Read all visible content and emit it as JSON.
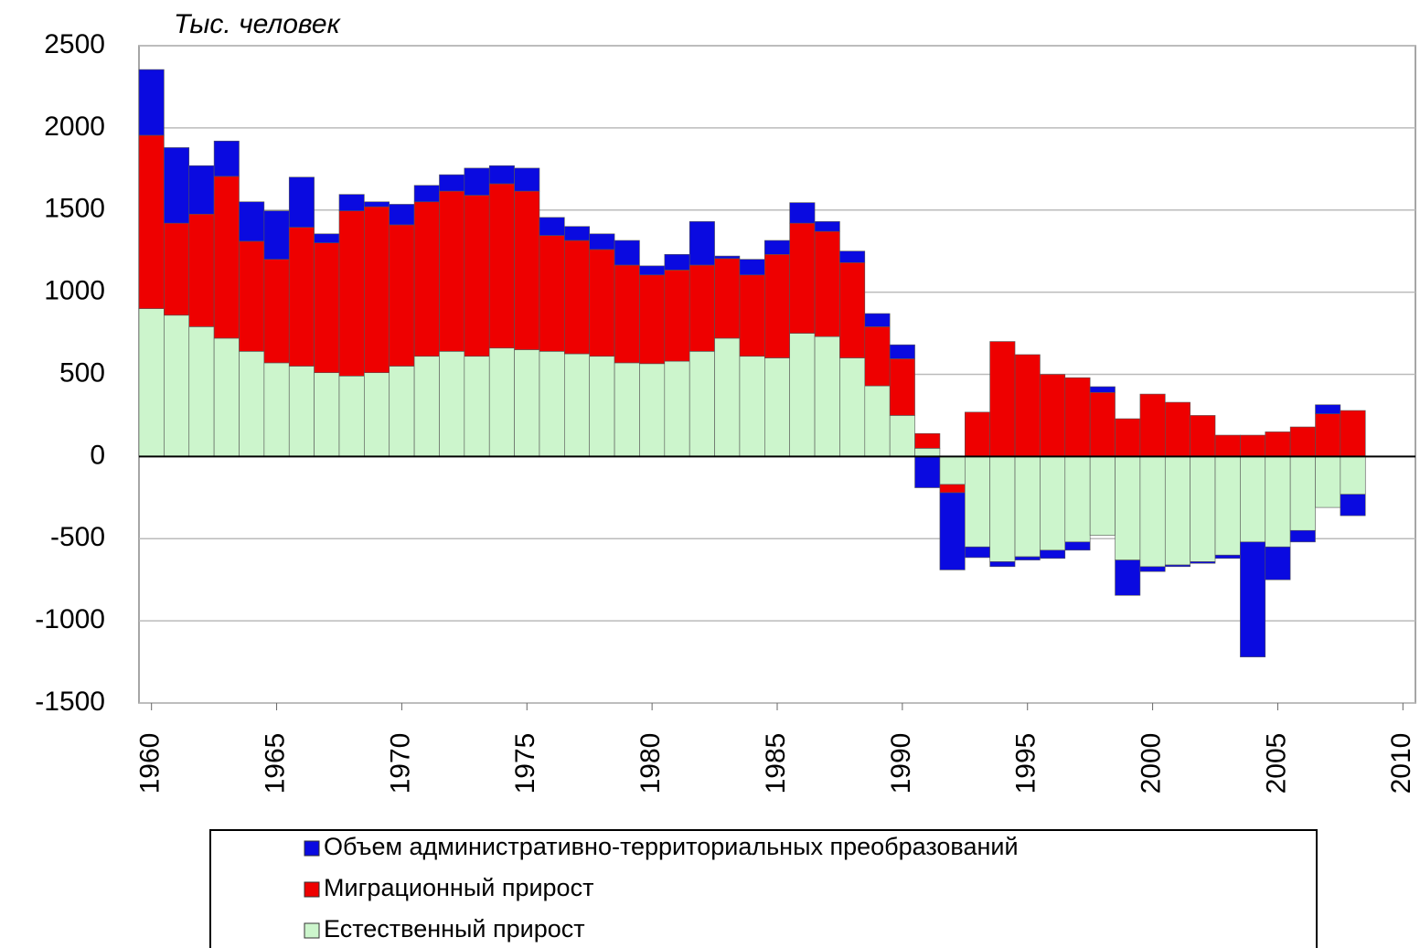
{
  "chart_data": {
    "type": "stacked_bar",
    "y_label": "Тыс. человек",
    "x": [
      1960,
      1961,
      1962,
      1963,
      1964,
      1965,
      1966,
      1967,
      1968,
      1969,
      1970,
      1971,
      1972,
      1973,
      1974,
      1975,
      1976,
      1977,
      1978,
      1979,
      1980,
      1981,
      1982,
      1983,
      1984,
      1985,
      1986,
      1987,
      1988,
      1989,
      1990,
      1991,
      1992,
      1993,
      1994,
      1995,
      1996,
      1997,
      1998,
      1999,
      2000,
      2001,
      2002,
      2003,
      2004,
      2005,
      2006,
      2007,
      2008
    ],
    "series": [
      {
        "name": "Объем административно-территориальных преобразований",
        "color": "#0a0ae0",
        "values": [
          400,
          460,
          295,
          215,
          240,
          295,
          305,
          55,
          100,
          30,
          125,
          100,
          100,
          165,
          110,
          140,
          110,
          85,
          95,
          150,
          55,
          95,
          265,
          15,
          95,
          85,
          125,
          60,
          70,
          80,
          85,
          -190,
          -470,
          -65,
          -30,
          -20,
          -50,
          -50,
          35,
          -215,
          -30,
          -10,
          -10,
          -20,
          -700,
          -200,
          -70,
          55,
          -130
        ]
      },
      {
        "name": "Миграционный прирост",
        "color": "#ee0000",
        "values": [
          1055,
          560,
          685,
          985,
          670,
          630,
          845,
          790,
          1005,
          1010,
          860,
          940,
          975,
          980,
          1000,
          965,
          705,
          690,
          650,
          595,
          540,
          555,
          525,
          485,
          495,
          630,
          670,
          640,
          580,
          360,
          345,
          90,
          -50,
          270,
          700,
          620,
          500,
          480,
          390,
          230,
          380,
          330,
          250,
          130,
          130,
          150,
          180,
          260,
          280
        ]
      },
      {
        "name": "Естественный прирост",
        "color": "#ccf5cc",
        "values": [
          900,
          860,
          790,
          720,
          640,
          570,
          550,
          510,
          490,
          510,
          550,
          610,
          640,
          610,
          660,
          650,
          640,
          625,
          610,
          570,
          565,
          580,
          640,
          720,
          610,
          600,
          750,
          730,
          600,
          430,
          250,
          50,
          -170,
          -550,
          -640,
          -610,
          -570,
          -520,
          -480,
          -630,
          -670,
          -660,
          -640,
          -600,
          -520,
          -550,
          -450,
          -310,
          -230
        ]
      }
    ],
    "xlim": [
      1959.5,
      2010.5
    ],
    "xticks": [
      1960,
      1965,
      1970,
      1975,
      1980,
      1985,
      1990,
      1995,
      2000,
      2005,
      2010
    ],
    "ylim": [
      -1500,
      2500
    ],
    "yticks": [
      -1500,
      -1000,
      -500,
      0,
      500,
      1000,
      1500,
      2000,
      2500
    ],
    "grid": true
  }
}
